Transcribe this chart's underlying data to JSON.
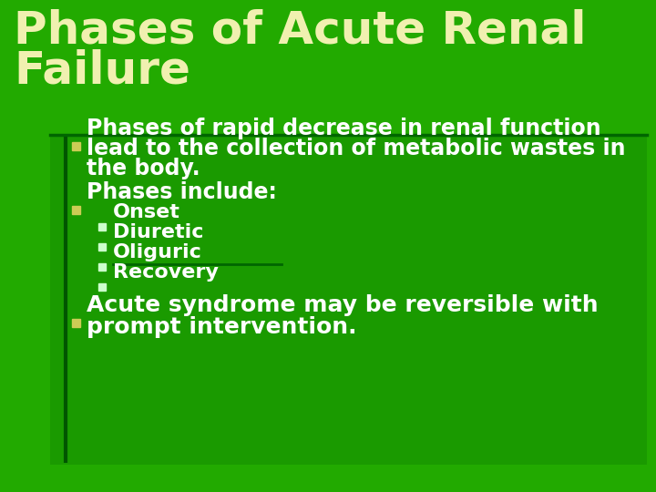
{
  "bg_color": "#22aa00",
  "title_line1": "Phases of Acute Renal",
  "title_line2": "Failure",
  "title_color": "#f0f0b0",
  "title_fontsize": 36,
  "divider_color": "#006600",
  "content_box_color": "#1a9900",
  "bullet1_lines": [
    "Phases of rapid decrease in renal function",
    "lead to the collection of metabolic wastes in",
    "the body."
  ],
  "bullet2_text": "Phases include:",
  "sub_bullets": [
    "Onset",
    "Diuretic",
    "Oliguric",
    "Recovery"
  ],
  "bullet3_lines": [
    "Acute syndrome may be reversible with",
    "prompt intervention."
  ],
  "main_fs": 17,
  "sub_fs": 16,
  "bullet3_fs": 18,
  "bullet_sq_color": "#cccc55",
  "sub_sq_color": "#ccffcc",
  "text_white": "#ffffff",
  "vert_line_color": "#005500",
  "oliguric_line_color": "#006600"
}
